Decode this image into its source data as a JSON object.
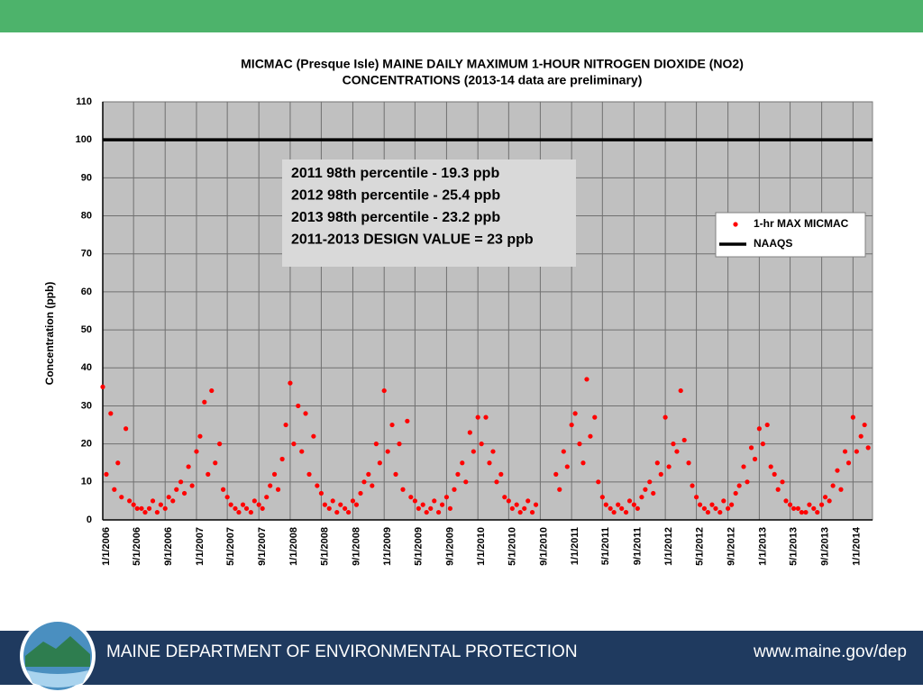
{
  "chart_data": {
    "type": "scatter",
    "title_lines": [
      "MICMAC (Presque Isle) MAINE  DAILY MAXIMUM 1-HOUR NITROGEN DIOXIDE (NO2)",
      "CONCENTRATIONS (2013-14 data are preliminary)"
    ],
    "y_label": "Concentration (ppb)",
    "annotations": [
      "2011 98th percentile - 19.3 ppb",
      "2012 98th percentile - 25.4 ppb",
      "2013 98th percentile - 23.2 ppb",
      "2011-2013  DESIGN VALUE = 23 ppb"
    ],
    "xlim": [
      "1/1/2006",
      "3/18/2014"
    ],
    "xticks": [
      "1/1/2006",
      "5/1/2006",
      "9/1/2006",
      "1/1/2007",
      "5/1/2007",
      "9/1/2007",
      "1/1/2008",
      "5/1/2008",
      "9/1/2008",
      "1/1/2009",
      "5/1/2009",
      "9/1/2009",
      "1/1/2010",
      "5/1/2010",
      "9/1/2010",
      "1/1/2011",
      "5/1/2011",
      "9/1/2011",
      "1/1/2012",
      "5/1/2012",
      "9/1/2012",
      "1/1/2013",
      "5/1/2013",
      "9/1/2013",
      "1/1/2014"
    ],
    "ylim": [
      0,
      110
    ],
    "yticks": [
      0,
      10,
      20,
      30,
      40,
      50,
      60,
      70,
      80,
      90,
      100,
      110
    ],
    "grid": true,
    "legend": "right",
    "reference_lines": [
      {
        "name": "NAAQS",
        "value": 100,
        "color": "#000000"
      }
    ],
    "series": [
      {
        "name": "1-hr MAX MICMAC",
        "color": "#ff0000",
        "x": [
          "1/1/2006",
          "1/15/2006",
          "2/1/2006",
          "2/15/2006",
          "3/1/2006",
          "3/15/2006",
          "4/1/2006",
          "4/15/2006",
          "5/1/2006",
          "5/15/2006",
          "6/1/2006",
          "6/15/2006",
          "7/1/2006",
          "7/15/2006",
          "8/1/2006",
          "8/15/2006",
          "9/1/2006",
          "9/15/2006",
          "10/1/2006",
          "10/15/2006",
          "11/1/2006",
          "11/15/2006",
          "12/1/2006",
          "12/15/2006",
          "1/1/2007",
          "1/15/2007",
          "2/1/2007",
          "2/15/2007",
          "3/1/2007",
          "3/15/2007",
          "4/1/2007",
          "4/15/2007",
          "5/1/2007",
          "5/15/2007",
          "6/1/2007",
          "6/15/2007",
          "7/1/2007",
          "7/15/2007",
          "8/1/2007",
          "8/15/2007",
          "9/1/2007",
          "9/15/2007",
          "10/1/2007",
          "10/15/2007",
          "11/1/2007",
          "11/15/2007",
          "12/1/2007",
          "12/15/2007",
          "1/1/2008",
          "1/15/2008",
          "2/1/2008",
          "2/15/2008",
          "3/1/2008",
          "3/15/2008",
          "4/1/2008",
          "4/15/2008",
          "5/1/2008",
          "5/15/2008",
          "6/1/2008",
          "6/15/2008",
          "7/1/2008",
          "7/15/2008",
          "8/1/2008",
          "8/15/2008",
          "9/1/2008",
          "9/15/2008",
          "10/1/2008",
          "10/15/2008",
          "11/1/2008",
          "11/15/2008",
          "12/1/2008",
          "12/15/2008",
          "1/1/2009",
          "1/15/2009",
          "2/1/2009",
          "2/15/2009",
          "3/1/2009",
          "3/15/2009",
          "4/1/2009",
          "4/15/2009",
          "5/1/2009",
          "5/15/2009",
          "6/1/2009",
          "6/15/2009",
          "7/1/2009",
          "7/15/2009",
          "8/1/2009",
          "8/15/2009",
          "9/1/2009",
          "9/15/2009",
          "10/1/2009",
          "10/15/2009",
          "11/1/2009",
          "11/15/2009",
          "12/1/2009",
          "12/15/2009",
          "1/1/2010",
          "1/15/2010",
          "2/1/2010",
          "2/15/2010",
          "3/1/2010",
          "3/15/2010",
          "4/1/2010",
          "4/15/2010",
          "5/1/2010",
          "5/15/2010",
          "6/1/2010",
          "6/15/2010",
          "7/1/2010",
          "7/15/2010",
          "8/1/2010",
          "8/15/2010",
          "11/1/2010",
          "11/15/2010",
          "12/1/2010",
          "12/15/2010",
          "1/1/2011",
          "1/15/2011",
          "2/1/2011",
          "2/15/2011",
          "3/1/2011",
          "3/15/2011",
          "4/1/2011",
          "4/15/2011",
          "5/1/2011",
          "5/15/2011",
          "6/1/2011",
          "6/15/2011",
          "7/1/2011",
          "7/15/2011",
          "8/1/2011",
          "8/15/2011",
          "9/1/2011",
          "9/15/2011",
          "10/1/2011",
          "10/15/2011",
          "11/1/2011",
          "11/15/2011",
          "12/1/2011",
          "12/15/2011",
          "1/1/2012",
          "1/15/2012",
          "2/1/2012",
          "2/15/2012",
          "3/1/2012",
          "3/15/2012",
          "4/1/2012",
          "4/15/2012",
          "5/1/2012",
          "5/15/2012",
          "6/1/2012",
          "6/15/2012",
          "7/1/2012",
          "7/15/2012",
          "8/1/2012",
          "8/15/2012",
          "9/1/2012",
          "9/15/2012",
          "10/1/2012",
          "10/15/2012",
          "11/1/2012",
          "11/15/2012",
          "12/1/2012",
          "12/15/2012",
          "1/1/2013",
          "1/15/2013",
          "2/1/2013",
          "2/15/2013",
          "3/1/2013",
          "3/15/2013",
          "4/1/2013",
          "4/15/2013",
          "5/1/2013",
          "5/15/2013",
          "6/1/2013",
          "6/15/2013",
          "7/1/2013",
          "7/15/2013",
          "8/1/2013",
          "8/15/2013",
          "9/1/2013",
          "9/15/2013",
          "10/1/2013",
          "10/15/2013",
          "11/1/2013",
          "11/15/2013",
          "12/1/2013",
          "12/15/2013",
          "1/1/2014",
          "1/15/2014",
          "2/1/2014",
          "2/15/2014",
          "3/1/2014"
        ],
        "values": [
          35,
          12,
          28,
          8,
          15,
          6,
          24,
          5,
          4,
          3,
          3,
          2,
          3,
          5,
          2,
          4,
          3,
          6,
          5,
          8,
          10,
          7,
          14,
          9,
          18,
          22,
          31,
          12,
          34,
          15,
          20,
          8,
          6,
          4,
          3,
          2,
          4,
          3,
          2,
          5,
          4,
          3,
          6,
          9,
          12,
          8,
          16,
          25,
          36,
          20,
          30,
          18,
          28,
          12,
          22,
          9,
          7,
          4,
          3,
          5,
          2,
          4,
          3,
          2,
          5,
          4,
          7,
          10,
          12,
          9,
          20,
          15,
          34,
          18,
          25,
          12,
          20,
          8,
          26,
          6,
          5,
          3,
          4,
          2,
          3,
          5,
          2,
          4,
          6,
          3,
          8,
          12,
          15,
          10,
          23,
          18,
          27,
          20,
          27,
          15,
          18,
          10,
          12,
          6,
          5,
          3,
          4,
          2,
          3,
          5,
          2,
          4,
          12,
          8,
          18,
          14,
          25,
          28,
          20,
          15,
          37,
          22,
          27,
          10,
          6,
          4,
          3,
          2,
          4,
          3,
          2,
          5,
          4,
          3,
          6,
          8,
          10,
          7,
          15,
          12,
          27,
          14,
          20,
          18,
          34,
          21,
          15,
          9,
          6,
          4,
          3,
          2,
          4,
          3,
          2,
          5,
          3,
          4,
          7,
          9,
          14,
          10,
          19,
          16,
          24,
          20,
          25,
          14,
          12,
          8,
          10,
          5,
          4,
          3,
          3,
          2,
          2,
          4,
          3,
          2,
          4,
          6,
          5,
          9,
          13,
          8,
          18,
          15,
          27,
          18,
          22,
          25,
          19
        ]
      }
    ]
  },
  "footer": {
    "organization": "MAINE DEPARTMENT OF ENVIRONMENTAL PROTECTION",
    "url": "www.maine.gov/dep"
  }
}
